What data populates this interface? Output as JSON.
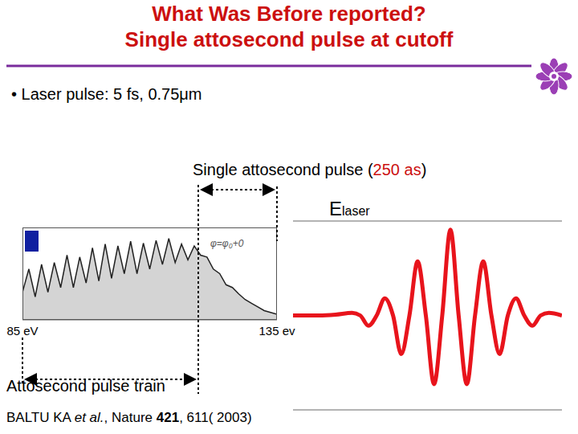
{
  "slide": {
    "title_lines": [
      "What Was Before reported?",
      "Single attosecond pulse at cutoff"
    ],
    "bullet": "• Laser pulse: 5 fs, 0.75μm",
    "pulse_label": {
      "before": "Single attosecond pulse (",
      "highlight": "250 as",
      "after": ")"
    },
    "field_label": {
      "main": "E",
      "sub": "laser"
    },
    "train_label": "Attosecond pulse train",
    "reference": [
      {
        "text": "BALTU KA "
      },
      {
        "text": "et al.",
        "style": "italic"
      },
      {
        "text": ", Nature "
      },
      {
        "text": "421",
        "style": "bold"
      },
      {
        "text": ", 611( 2003)"
      }
    ]
  },
  "chart_data": [
    {
      "type": "area",
      "annotation": "φ=φ₀+0",
      "x": [
        85,
        86.25,
        87.5,
        88.75,
        90,
        91.25,
        92.5,
        93.75,
        95,
        96.25,
        97.5,
        98.75,
        100,
        101.25,
        102.5,
        103.75,
        105,
        106.25,
        107.5,
        108.75,
        110,
        111.25,
        112.5,
        113.75,
        115,
        116.25,
        117.5,
        118.75,
        120,
        121.25,
        122.5,
        123.75,
        125,
        126.25,
        127.5,
        128.75,
        130,
        131.25,
        132.5,
        133.75,
        135
      ],
      "values": [
        0.3,
        0.55,
        0.25,
        0.6,
        0.3,
        0.62,
        0.35,
        0.7,
        0.35,
        0.68,
        0.4,
        0.78,
        0.42,
        0.82,
        0.45,
        0.8,
        0.5,
        0.85,
        0.5,
        0.83,
        0.55,
        0.86,
        0.6,
        0.88,
        0.62,
        0.82,
        0.65,
        0.8,
        0.7,
        0.68,
        0.55,
        0.5,
        0.38,
        0.35,
        0.28,
        0.22,
        0.18,
        0.14,
        0.1,
        0.08,
        0.06
      ],
      "color": "#d4d4d4",
      "xlim": [
        85,
        135
      ],
      "xticks": [
        {
          "value": 85,
          "label": "85 eV"
        },
        {
          "value": 135,
          "label": "135 ev"
        }
      ],
      "ylim": [
        0,
        1
      ],
      "yticks": [
        0,
        1
      ],
      "grid": false,
      "tick_labels": "x"
    },
    {
      "type": "line",
      "x": [
        -12,
        -10,
        -8.75,
        -7.5,
        -6.875,
        -6.25,
        -5.625,
        -5,
        -4.375,
        -3.75,
        -3.125,
        -2.5,
        -1.875,
        -1.25,
        -0.625,
        0,
        0.625,
        1.25,
        1.875,
        2.5,
        3.125,
        3.75,
        4.375,
        5,
        5.625,
        6.25,
        6.875,
        7.5,
        8.5
      ],
      "values": [
        0,
        0,
        0.01,
        0.03,
        0,
        -0.12,
        0,
        0.2,
        0,
        -0.45,
        0,
        0.63,
        0,
        -0.8,
        0,
        1,
        0,
        -0.8,
        0,
        0.63,
        0,
        -0.45,
        0,
        0.2,
        0,
        -0.12,
        0,
        0.03,
        0
      ],
      "color": "#e8141c",
      "xlim": [
        -12,
        8.5
      ],
      "xticks": [
        -12,
        8.5
      ],
      "ylim": [
        -1.1,
        1.1
      ],
      "yticks": [
        0
      ],
      "grid": true,
      "tick_labels": false
    }
  ]
}
